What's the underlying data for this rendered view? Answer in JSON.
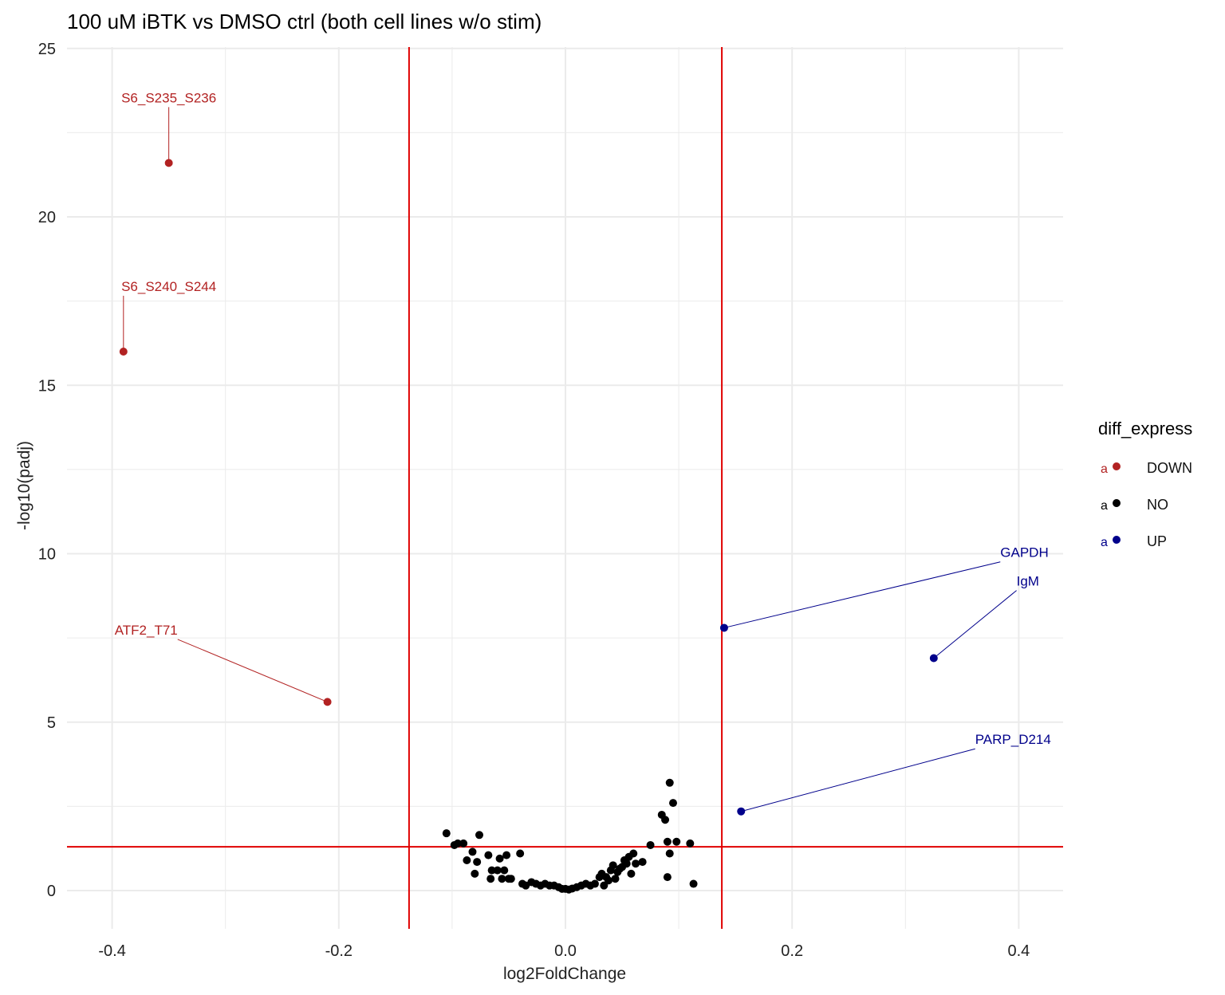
{
  "chart_data": {
    "type": "scatter",
    "title": "100 uM iBTK vs DMSO ctrl (both cell lines w/o stim)",
    "xlabel": "log2FoldChange",
    "ylabel": "-log10(padj)",
    "xlim": [
      -0.4,
      0.4
    ],
    "ylim": [
      0,
      25
    ],
    "xticks": [
      -0.4,
      -0.2,
      0.0,
      0.2,
      0.4
    ],
    "xtick_labels": [
      "-0.4",
      "-0.2",
      "0.0",
      "0.2",
      "0.4"
    ],
    "yticks": [
      0,
      5,
      10,
      15,
      20,
      25
    ],
    "ytick_labels": [
      "0",
      "5",
      "10",
      "15",
      "20",
      "25"
    ],
    "grid": true,
    "thresholds": {
      "vertical": [
        -0.138,
        0.138
      ],
      "horizontal": 1.3,
      "color": "#e00000"
    },
    "legend": {
      "title": "diff_express",
      "position": "right",
      "key_glyph": "a",
      "entries": [
        {
          "label": "DOWN",
          "color": "#b22222"
        },
        {
          "label": "NO",
          "color": "#000000"
        },
        {
          "label": "UP",
          "color": "#00008b"
        }
      ]
    },
    "series": [
      {
        "name": "DOWN",
        "color": "#b22222",
        "points": [
          {
            "x": -0.35,
            "y": 21.6,
            "label": "S6_S235_S236"
          },
          {
            "x": -0.39,
            "y": 16.0,
            "label": "S6_S240_S244"
          },
          {
            "x": -0.21,
            "y": 5.6,
            "label": "ATF2_T71"
          }
        ]
      },
      {
        "name": "UP",
        "color": "#00008b",
        "points": [
          {
            "x": 0.14,
            "y": 7.8,
            "label": "GAPDH"
          },
          {
            "x": 0.325,
            "y": 6.9,
            "label": "IgM"
          },
          {
            "x": 0.155,
            "y": 2.35,
            "label": "PARP_D214"
          }
        ]
      },
      {
        "name": "NO",
        "color": "#000000",
        "points": [
          {
            "x": -0.105,
            "y": 1.7
          },
          {
            "x": -0.098,
            "y": 1.35
          },
          {
            "x": -0.095,
            "y": 1.4
          },
          {
            "x": -0.09,
            "y": 1.4
          },
          {
            "x": -0.087,
            "y": 0.9
          },
          {
            "x": -0.082,
            "y": 1.15
          },
          {
            "x": -0.08,
            "y": 0.5
          },
          {
            "x": -0.078,
            "y": 0.85
          },
          {
            "x": -0.076,
            "y": 1.65
          },
          {
            "x": -0.068,
            "y": 1.05
          },
          {
            "x": -0.066,
            "y": 0.35
          },
          {
            "x": -0.065,
            "y": 0.6
          },
          {
            "x": -0.06,
            "y": 0.6
          },
          {
            "x": -0.058,
            "y": 0.95
          },
          {
            "x": -0.056,
            "y": 0.35
          },
          {
            "x": -0.054,
            "y": 0.6
          },
          {
            "x": -0.052,
            "y": 1.05
          },
          {
            "x": -0.05,
            "y": 0.35
          },
          {
            "x": -0.048,
            "y": 0.35
          },
          {
            "x": -0.04,
            "y": 1.1
          },
          {
            "x": -0.038,
            "y": 0.2
          },
          {
            "x": -0.035,
            "y": 0.15
          },
          {
            "x": -0.03,
            "y": 0.25
          },
          {
            "x": -0.026,
            "y": 0.2
          },
          {
            "x": -0.022,
            "y": 0.15
          },
          {
            "x": -0.018,
            "y": 0.2
          },
          {
            "x": -0.014,
            "y": 0.15
          },
          {
            "x": -0.01,
            "y": 0.15
          },
          {
            "x": -0.006,
            "y": 0.1
          },
          {
            "x": -0.003,
            "y": 0.05
          },
          {
            "x": 0.0,
            "y": 0.05
          },
          {
            "x": 0.003,
            "y": 0.03
          },
          {
            "x": 0.006,
            "y": 0.06
          },
          {
            "x": 0.01,
            "y": 0.1
          },
          {
            "x": 0.014,
            "y": 0.15
          },
          {
            "x": 0.018,
            "y": 0.2
          },
          {
            "x": 0.022,
            "y": 0.15
          },
          {
            "x": 0.026,
            "y": 0.2
          },
          {
            "x": 0.03,
            "y": 0.4
          },
          {
            "x": 0.032,
            "y": 0.5
          },
          {
            "x": 0.034,
            "y": 0.15
          },
          {
            "x": 0.036,
            "y": 0.4
          },
          {
            "x": 0.038,
            "y": 0.3
          },
          {
            "x": 0.04,
            "y": 0.6
          },
          {
            "x": 0.042,
            "y": 0.75
          },
          {
            "x": 0.044,
            "y": 0.35
          },
          {
            "x": 0.046,
            "y": 0.55
          },
          {
            "x": 0.048,
            "y": 0.65
          },
          {
            "x": 0.05,
            "y": 0.7
          },
          {
            "x": 0.052,
            "y": 0.9
          },
          {
            "x": 0.054,
            "y": 0.8
          },
          {
            "x": 0.056,
            "y": 1.0
          },
          {
            "x": 0.058,
            "y": 0.5
          },
          {
            "x": 0.06,
            "y": 1.1
          },
          {
            "x": 0.062,
            "y": 0.8
          },
          {
            "x": 0.068,
            "y": 0.85
          },
          {
            "x": 0.075,
            "y": 1.35
          },
          {
            "x": 0.085,
            "y": 2.25
          },
          {
            "x": 0.088,
            "y": 2.1
          },
          {
            "x": 0.09,
            "y": 0.4
          },
          {
            "x": 0.09,
            "y": 1.45
          },
          {
            "x": 0.092,
            "y": 3.2
          },
          {
            "x": 0.092,
            "y": 1.1
          },
          {
            "x": 0.095,
            "y": 2.6
          },
          {
            "x": 0.098,
            "y": 1.45
          },
          {
            "x": 0.11,
            "y": 1.4
          },
          {
            "x": 0.113,
            "y": 0.2
          }
        ]
      }
    ],
    "annotations": [
      {
        "point": "S6_S235_S236",
        "text": "S6_S235_S236",
        "x": -0.35,
        "y": 23.4,
        "color": "#b22222",
        "anchor": "middle"
      },
      {
        "point": "S6_S240_S244",
        "text": "S6_S240_S244",
        "x": -0.35,
        "y": 17.8,
        "color": "#b22222",
        "anchor": "middle"
      },
      {
        "point": "ATF2_T71",
        "text": "ATF2_T71",
        "x": -0.37,
        "y": 7.6,
        "color": "#b22222",
        "anchor": "middle"
      },
      {
        "point": "GAPDH",
        "text": "GAPDH",
        "x": 0.405,
        "y": 9.9,
        "color": "#00008b",
        "anchor": "middle"
      },
      {
        "point": "IgM",
        "text": "IgM",
        "x": 0.408,
        "y": 9.05,
        "color": "#00008b",
        "anchor": "middle"
      },
      {
        "point": "PARP_D214",
        "text": "PARP_D214",
        "x": 0.395,
        "y": 4.35,
        "color": "#00008b",
        "anchor": "middle"
      }
    ]
  }
}
